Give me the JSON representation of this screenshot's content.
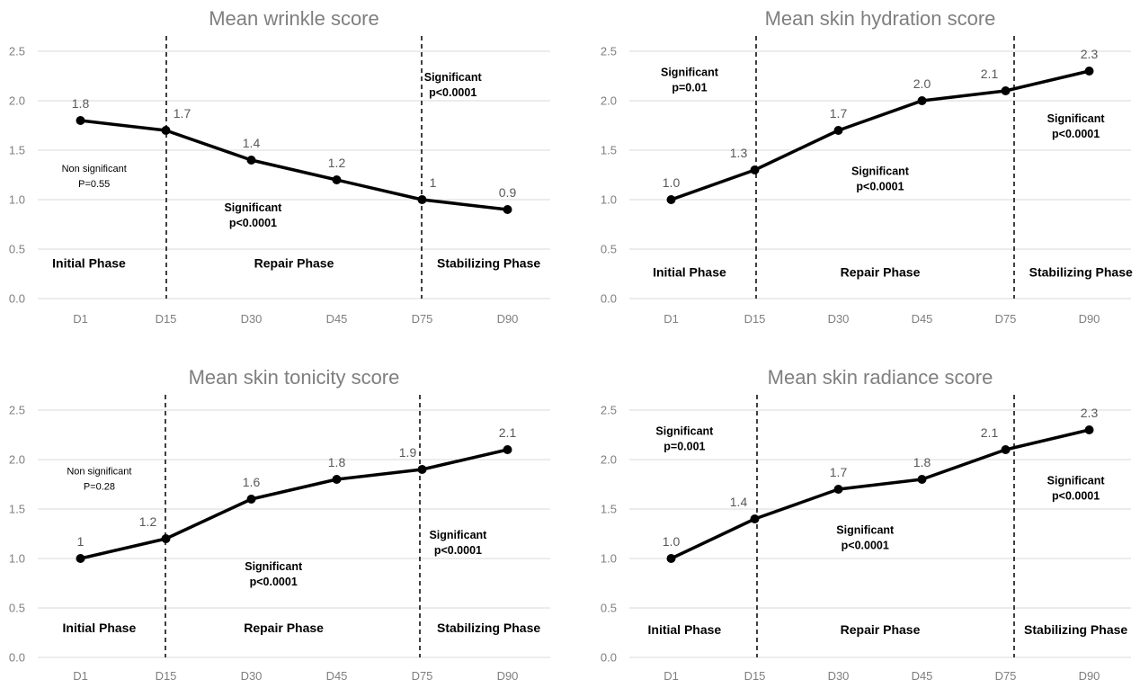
{
  "chart_data": [
    {
      "type": "line",
      "title": "Mean wrinkle score",
      "categories": [
        "D1",
        "D15",
        "D30",
        "D45",
        "D75",
        "D90"
      ],
      "values": [
        1.8,
        1.7,
        1.4,
        1.2,
        1.0,
        0.9
      ],
      "data_labels": [
        "1.8",
        "1.7",
        "1.4",
        "1.2",
        "1",
        "0.9"
      ],
      "ylim": [
        0,
        2.5
      ],
      "yticks": [
        "0.0",
        "0.5",
        "1.0",
        "1.5",
        "2.0",
        "2.5"
      ],
      "grid": true,
      "dividers_after": [
        "D15",
        "D75"
      ],
      "phases": [
        "Initial Phase",
        "Repair Phase",
        "Stabilizing Phase"
      ],
      "annotations": [
        {
          "line1": "Non significant",
          "line2": "P=0.55",
          "bold": false
        },
        {
          "line1": "Significant",
          "line2": "p<0.0001",
          "bold": true
        },
        {
          "line1": "Significant",
          "line2": "p<0.0001",
          "bold": true
        }
      ]
    },
    {
      "type": "line",
      "title": "Mean skin hydration score",
      "categories": [
        "D1",
        "D15",
        "D30",
        "D45",
        "D75",
        "D90"
      ],
      "values": [
        1.0,
        1.3,
        1.7,
        2.0,
        2.1,
        2.3
      ],
      "data_labels": [
        "1.0",
        "1.3",
        "1.7",
        "2.0",
        "2.1",
        "2.3"
      ],
      "ylim": [
        0,
        2.5
      ],
      "yticks": [
        "0.0",
        "0.5",
        "1.0",
        "1.5",
        "2.0",
        "2.5"
      ],
      "grid": true,
      "dividers_after": [
        "D15",
        "D75"
      ],
      "phases": [
        "Initial Phase",
        "Repair Phase",
        "Stabilizing Phase"
      ],
      "annotations": [
        {
          "line1": "Significant",
          "line2": "p=0.01",
          "bold": true
        },
        {
          "line1": "Significant",
          "line2": "p<0.0001",
          "bold": true
        },
        {
          "line1": "Significant",
          "line2": "p<0.0001",
          "bold": true
        }
      ]
    },
    {
      "type": "line",
      "title": "Mean skin tonicity score",
      "categories": [
        "D1",
        "D15",
        "D30",
        "D45",
        "D75",
        "D90"
      ],
      "values": [
        1.0,
        1.2,
        1.6,
        1.8,
        1.9,
        2.1
      ],
      "data_labels": [
        "1",
        "1.2",
        "1.6",
        "1.8",
        "1.9",
        "2.1"
      ],
      "ylim": [
        0,
        2.5
      ],
      "yticks": [
        "0.0",
        "0.5",
        "1.0",
        "1.5",
        "2.0",
        "2.5"
      ],
      "grid": true,
      "dividers_after": [
        "D15",
        "D75"
      ],
      "phases": [
        "Initial Phase",
        "Repair Phase",
        "Stabilizing Phase"
      ],
      "annotations": [
        {
          "line1": "Non significant",
          "line2": "P=0.28",
          "bold": false
        },
        {
          "line1": "Significant",
          "line2": "p<0.0001",
          "bold": true
        },
        {
          "line1": "Significant",
          "line2": "p<0.0001",
          "bold": true
        }
      ]
    },
    {
      "type": "line",
      "title": "Mean skin radiance score",
      "categories": [
        "D1",
        "D15",
        "D30",
        "D45",
        "D75",
        "D90"
      ],
      "values": [
        1.0,
        1.4,
        1.7,
        1.8,
        2.1,
        2.3
      ],
      "data_labels": [
        "1.0",
        "1.4",
        "1.7",
        "1.8",
        "2.1",
        "2.3"
      ],
      "ylim": [
        0,
        2.5
      ],
      "yticks": [
        "0.0",
        "0.5",
        "1.0",
        "1.5",
        "2.0",
        "2.5"
      ],
      "grid": true,
      "dividers_after": [
        "D15",
        "D75"
      ],
      "phases": [
        "Initial Phase",
        "Repair Phase",
        "Stabilizing Phase"
      ],
      "annotations": [
        {
          "line1": "Significant",
          "line2": "p=0.001",
          "bold": true
        },
        {
          "line1": "Significant",
          "line2": "p<0.0001",
          "bold": true
        },
        {
          "line1": "Significant",
          "line2": "p<0.0001",
          "bold": true
        }
      ]
    }
  ],
  "colors": {
    "line": "#000000",
    "gridline": "#d9d9d9",
    "title": "#7f7f7f",
    "tick_label": "#7f7f7f",
    "data_label": "#595959"
  }
}
